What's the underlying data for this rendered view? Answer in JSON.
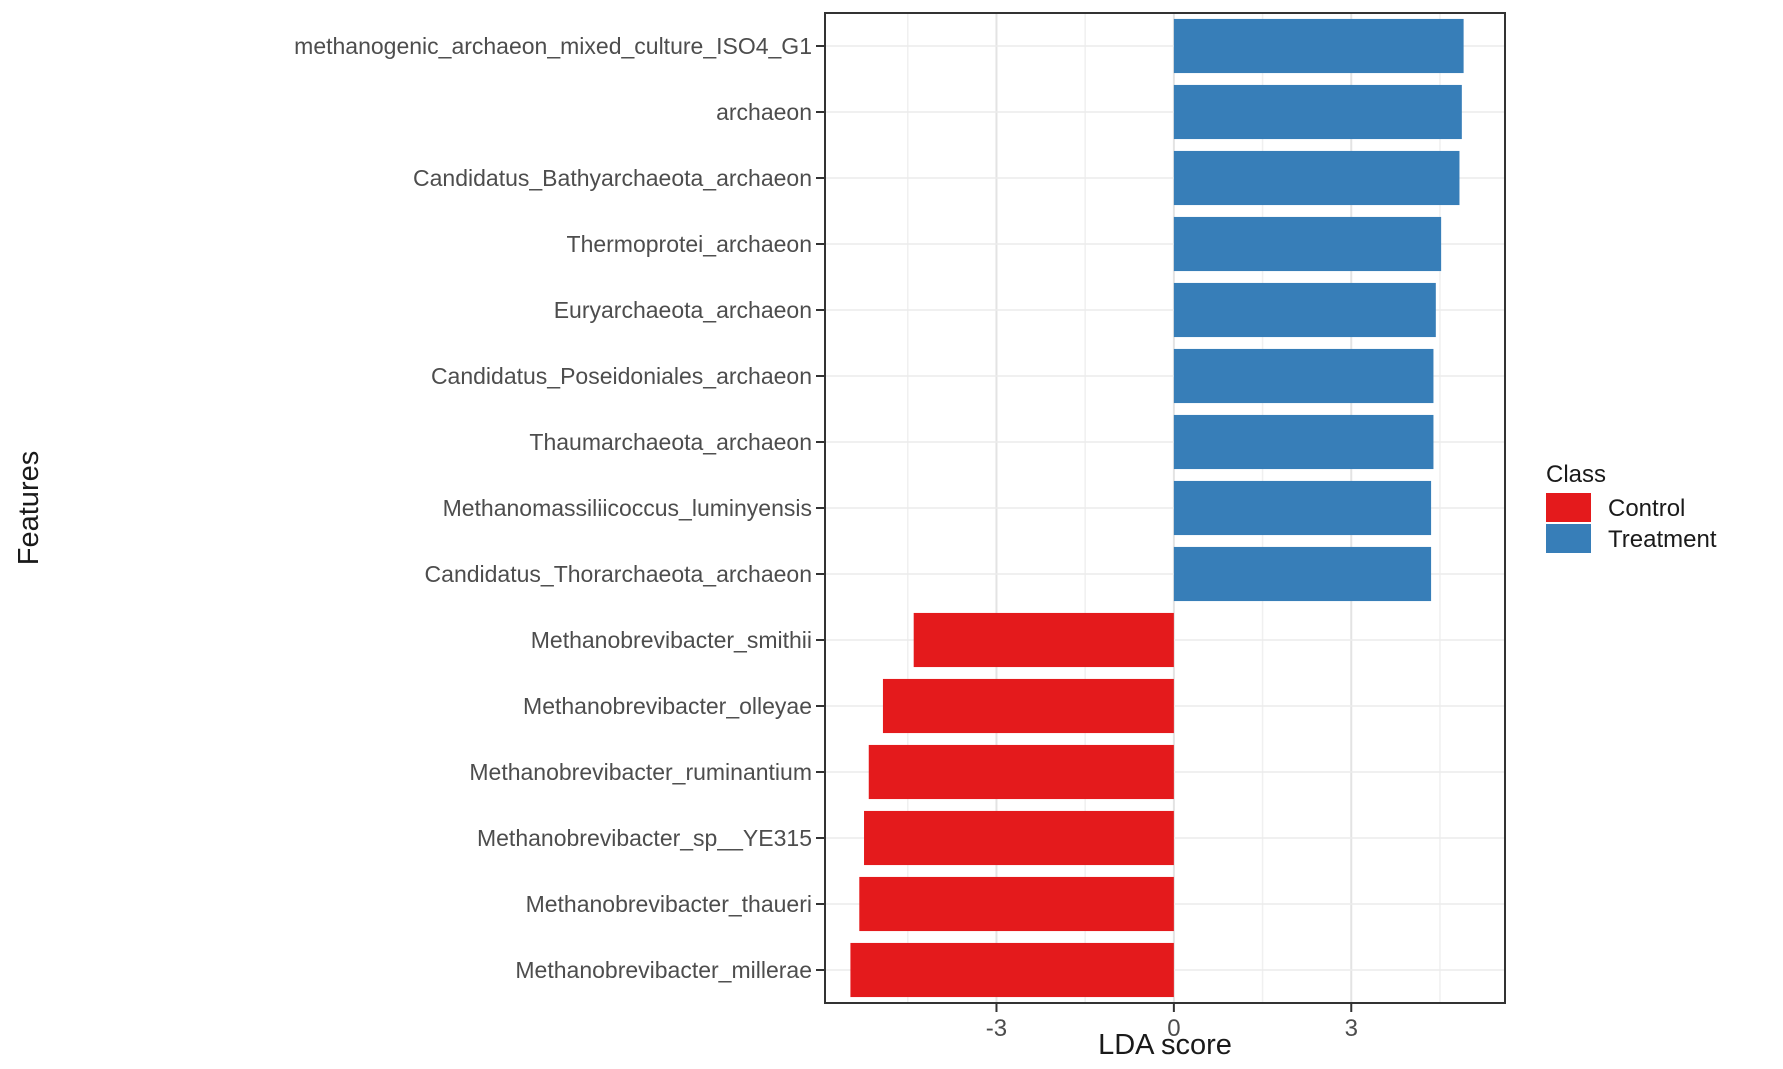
{
  "chart_data": {
    "type": "bar",
    "orientation": "horizontal",
    "title": "",
    "xlabel": "LDA score",
    "ylabel": "Features",
    "xlim": [
      -5.9,
      5.6
    ],
    "xticks": [
      -3,
      0,
      3
    ],
    "xtick_labels": [
      "-3",
      "0",
      "3"
    ],
    "grid": true,
    "legend_position": "right",
    "legend_title": "Class",
    "classes": [
      {
        "name": "Control",
        "color": "#e41a1c"
      },
      {
        "name": "Treatment",
        "color": "#377eb8"
      }
    ],
    "categories": [
      "methanogenic_archaeon_mixed_culture_ISO4_G1",
      "archaeon",
      "Candidatus_Bathyarchaeota_archaeon",
      "Thermoprotei_archaeon",
      "Euryarchaeota_archaeon",
      "Candidatus_Poseidoniales_archaeon",
      "Thaumarchaeota_archaeon",
      "Methanomassiliicoccus_luminyensis",
      "Candidatus_Thorarchaeota_archaeon",
      "Methanobrevibacter_smithii",
      "Methanobrevibacter_olleyae",
      "Methanobrevibacter_ruminantium",
      "Methanobrevibacter_sp__YE315",
      "Methanobrevibacter_thaueri",
      "Methanobrevibacter_millerae"
    ],
    "values": [
      4.9,
      4.87,
      4.83,
      4.52,
      4.43,
      4.39,
      4.39,
      4.35,
      4.35,
      -4.4,
      -4.92,
      -5.16,
      -5.24,
      -5.32,
      -5.47
    ],
    "class_of_bar": [
      "Treatment",
      "Treatment",
      "Treatment",
      "Treatment",
      "Treatment",
      "Treatment",
      "Treatment",
      "Treatment",
      "Treatment",
      "Control",
      "Control",
      "Control",
      "Control",
      "Control",
      "Control"
    ]
  }
}
